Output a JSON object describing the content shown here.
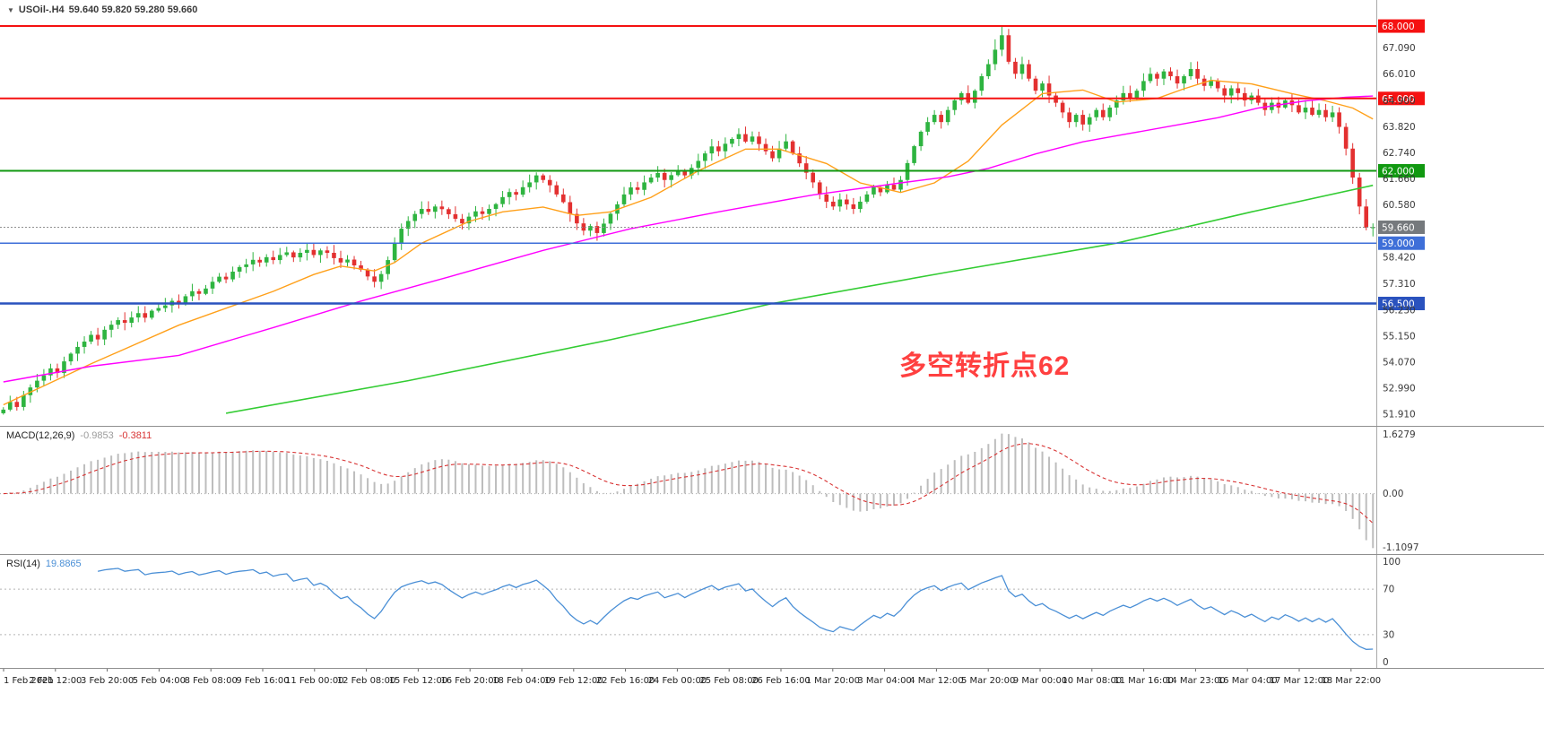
{
  "window": {
    "symbol_period": "USOil-.H4",
    "quote_ohlc": "59.640 59.820 59.280 59.660"
  },
  "chart_data": {
    "type": "candlestick",
    "symbol": "USOil",
    "timeframe": "H4",
    "price_panel": {
      "ylim": [
        51.39,
        69.08
      ],
      "price_ticks": [
        "67.090",
        "66.010",
        "64.900",
        "63.820",
        "62.740",
        "61.660",
        "60.580",
        "58.420",
        "57.310",
        "56.230",
        "55.150",
        "54.070",
        "52.990",
        "51.910"
      ],
      "horizontal_lines": [
        {
          "label": "68.000",
          "price": 68.0,
          "color": "#f51111",
          "width": 2
        },
        {
          "label": "65.000",
          "price": 65.0,
          "color": "#f51111",
          "width": 2
        },
        {
          "label": "62.000",
          "price": 62.0,
          "color": "#119911",
          "width": 2
        },
        {
          "label": "59.000",
          "price": 59.0,
          "color": "#3e6fd8",
          "width": 1.5
        },
        {
          "label": "56.500",
          "price": 56.5,
          "color": "#2a52be",
          "width": 2.5
        }
      ],
      "current_price": {
        "label": "59.660",
        "value": 59.66,
        "line_color": "#909090",
        "label_bg": "#75797d"
      },
      "candles": {
        "bull_color": "#2eb440",
        "bear_color": "#e33030",
        "first_open": 51.95,
        "closes": [
          52.1,
          52.42,
          52.21,
          52.7,
          53.02,
          53.3,
          53.52,
          53.81,
          53.62,
          54.1,
          54.42,
          54.7,
          54.92,
          55.2,
          55.01,
          55.41,
          55.62,
          55.81,
          55.7,
          55.92,
          56.1,
          55.91,
          56.2,
          56.31,
          56.42,
          56.61,
          56.5,
          56.8,
          57.01,
          56.9,
          57.12,
          57.4,
          57.61,
          57.5,
          57.82,
          58.01,
          58.12,
          58.31,
          58.2,
          58.42,
          58.3,
          58.51,
          58.62,
          58.41,
          58.6,
          58.72,
          58.51,
          58.7,
          58.6,
          58.38,
          58.2,
          58.32,
          58.08,
          57.9,
          57.62,
          57.4,
          57.72,
          58.3,
          59.02,
          59.6,
          59.92,
          60.21,
          60.42,
          60.3,
          60.52,
          60.41,
          60.2,
          60.01,
          59.82,
          60.1,
          60.32,
          60.21,
          60.42,
          60.62,
          60.91,
          61.12,
          61.01,
          61.32,
          61.52,
          61.81,
          61.62,
          61.4,
          61.02,
          60.7,
          60.21,
          59.82,
          59.52,
          59.71,
          59.42,
          59.81,
          60.22,
          60.61,
          61.02,
          61.31,
          61.21,
          61.52,
          61.72,
          61.91,
          61.62,
          61.82,
          62.02,
          61.81,
          62.12,
          62.41,
          62.72,
          63.01,
          62.81,
          63.12,
          63.32,
          63.52,
          63.21,
          63.42,
          63.11,
          62.81,
          62.52,
          62.92,
          63.22,
          62.72,
          62.31,
          61.92,
          61.52,
          61.02,
          60.72,
          60.52,
          60.81,
          60.61,
          60.42,
          60.72,
          61.02,
          61.32,
          61.11,
          61.42,
          61.22,
          61.62,
          62.32,
          63.02,
          63.62,
          64.02,
          64.32,
          64.02,
          64.52,
          64.92,
          65.22,
          64.82,
          65.32,
          65.92,
          66.42,
          67.02,
          67.62,
          66.52,
          66.02,
          66.42,
          65.82,
          65.32,
          65.62,
          65.12,
          64.82,
          64.42,
          64.02,
          64.32,
          63.92,
          64.22,
          64.52,
          64.22,
          64.62,
          64.92,
          65.22,
          65.02,
          65.32,
          65.72,
          66.02,
          65.82,
          66.12,
          65.92,
          65.62,
          65.92,
          66.22,
          65.82,
          65.52,
          65.72,
          65.42,
          65.12,
          65.42,
          65.22,
          64.92,
          65.12,
          64.82,
          64.52,
          64.82,
          64.62,
          64.92,
          64.72,
          64.42,
          64.62,
          64.32,
          64.52,
          64.22,
          64.42,
          63.82,
          62.92,
          61.72,
          60.52,
          59.64,
          59.66
        ],
        "high_overrides": {
          "147": 67.45,
          "148": 67.98,
          "149": 67.88
        },
        "last_ohlc": {
          "o": 59.64,
          "h": 59.82,
          "l": 59.28,
          "c": 59.66
        }
      },
      "moving_averages": [
        {
          "name": "ma-fast",
          "color": "#ffa01a",
          "width": 1.4,
          "points": [
            [
              0,
              52.3
            ],
            [
              13,
              54.0
            ],
            [
              26,
              55.6
            ],
            [
              40,
              57.0
            ],
            [
              46,
              57.7
            ],
            [
              50,
              58.05
            ],
            [
              55,
              57.85
            ],
            [
              58,
              58.2
            ],
            [
              62,
              59.0
            ],
            [
              69,
              59.9
            ],
            [
              74,
              60.3
            ],
            [
              80,
              60.5
            ],
            [
              85,
              60.15
            ],
            [
              90,
              60.3
            ],
            [
              96,
              60.9
            ],
            [
              103,
              62.0
            ],
            [
              110,
              62.9
            ],
            [
              115,
              62.9
            ],
            [
              122,
              62.3
            ],
            [
              127,
              61.5
            ],
            [
              133,
              61.1
            ],
            [
              138,
              61.5
            ],
            [
              143,
              62.4
            ],
            [
              148,
              63.9
            ],
            [
              154,
              65.2
            ],
            [
              160,
              65.35
            ],
            [
              165,
              64.85
            ],
            [
              171,
              65.0
            ],
            [
              175,
              65.4
            ],
            [
              179,
              65.75
            ],
            [
              185,
              65.6
            ],
            [
              191,
              65.2
            ],
            [
              196,
              64.9
            ],
            [
              200,
              64.6
            ],
            [
              203,
              64.15
            ]
          ]
        },
        {
          "name": "ma-mid",
          "color": "#ff00ff",
          "width": 1.4,
          "points": [
            [
              0,
              53.25
            ],
            [
              13,
              53.9
            ],
            [
              26,
              54.35
            ],
            [
              40,
              55.5
            ],
            [
              53,
              56.6
            ],
            [
              66,
              57.6
            ],
            [
              80,
              58.7
            ],
            [
              93,
              59.6
            ],
            [
              106,
              60.3
            ],
            [
              120,
              61.0
            ],
            [
              133,
              61.5
            ],
            [
              140,
              61.75
            ],
            [
              146,
              62.1
            ],
            [
              153,
              62.7
            ],
            [
              160,
              63.2
            ],
            [
              166,
              63.5
            ],
            [
              173,
              63.85
            ],
            [
              180,
              64.2
            ],
            [
              186,
              64.6
            ],
            [
              193,
              64.9
            ],
            [
              199,
              65.05
            ],
            [
              203,
              65.1
            ]
          ]
        },
        {
          "name": "ma-slow",
          "color": "#33cc33",
          "width": 1.6,
          "points": [
            [
              33,
              51.95
            ],
            [
              60,
              53.3
            ],
            [
              90,
              55.0
            ],
            [
              114,
              56.5
            ],
            [
              140,
              57.8
            ],
            [
              165,
              59.0
            ],
            [
              185,
              60.3
            ],
            [
              203,
              61.4
            ]
          ]
        }
      ],
      "annotation": {
        "text": "多空转折点62",
        "color": "#ff4040",
        "x": 1003,
        "y": 383,
        "font_size": 30
      }
    },
    "macd_panel": {
      "label": "MACD(12,26,9)",
      "value_main": "-0.9853",
      "value_signal": "-0.3811",
      "axis_ticks": [
        "1.6279",
        "0.00",
        "-1.1097"
      ],
      "params": {
        "fast": 12,
        "slow": 26,
        "signal": 9
      },
      "histogram_color": "#bdbdbd",
      "signal_color": "#d83434"
    },
    "rsi_panel": {
      "label": "RSI(14)",
      "value": "19.8865",
      "period": 14,
      "levels": [
        70,
        30
      ],
      "axis_ticks": [
        "100",
        "70",
        "30",
        "0"
      ],
      "line_color": "#4a8fd6"
    },
    "time_axis": {
      "labels": [
        "1 Feb 2021",
        "2 Feb 12:00",
        "3 Feb 20:00",
        "5 Feb 04:00",
        "8 Feb 08:00",
        "9 Feb 16:00",
        "11 Feb 00:00",
        "12 Feb 08:00",
        "15 Feb 12:00",
        "16 Feb 20:00",
        "18 Feb 04:00",
        "19 Feb 12:00",
        "22 Feb 16:00",
        "24 Feb 00:00",
        "25 Feb 08:00",
        "26 Feb 16:00",
        "1 Mar 20:00",
        "3 Mar 04:00",
        "4 Mar 12:00",
        "5 Mar 20:00",
        "9 Mar 00:00",
        "10 Mar 08:00",
        "11 Mar 16:00",
        "14 Mar 23:00",
        "16 Mar 04:00",
        "17 Mar 12:00",
        "18 Mar 22:00"
      ]
    }
  }
}
